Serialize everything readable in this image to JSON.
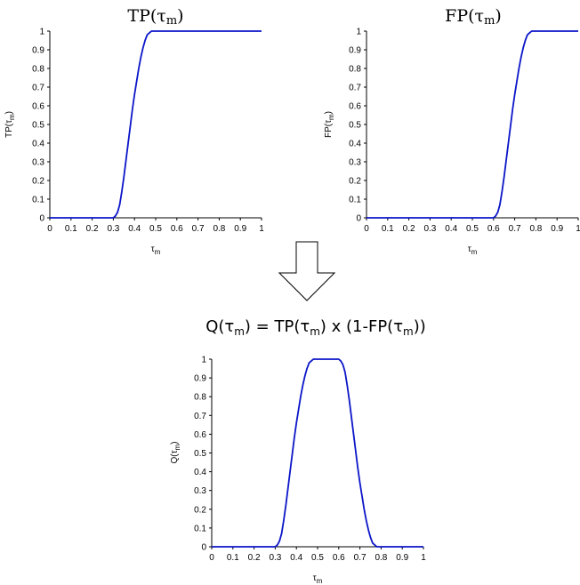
{
  "titles": {
    "tp": {
      "main": "TP(τ",
      "sub": "m",
      "close": ")"
    },
    "fp": {
      "main": "FP(τ",
      "sub": "m",
      "close": ")"
    },
    "formula": {
      "p1": "Q(τ",
      "s1": "m",
      "p2": ") = TP(τ",
      "s2": "m",
      "p3": ") x (1-FP(τ",
      "s3": "m",
      "p4": "))"
    }
  },
  "arrow": {
    "icon": "down-arrow-icon"
  },
  "colors": {
    "series": "#0b16c8",
    "axis": "#000000"
  },
  "chart_data": [
    {
      "id": "tp",
      "type": "line",
      "ylabel": {
        "main": "TP(τ",
        "sub": "m",
        "close": ")"
      },
      "xlabel": {
        "main": "τ",
        "sub": "m"
      },
      "xlim": [
        0,
        1
      ],
      "ylim": [
        0,
        1
      ],
      "x_ticks": [
        "0",
        "0.1",
        "0.2",
        "0.3",
        "0.4",
        "0.5",
        "0.6",
        "0.7",
        "0.8",
        "0.9",
        "1"
      ],
      "y_ticks": [
        "0",
        "0.1",
        "0.2",
        "0.3",
        "0.4",
        "0.5",
        "0.6",
        "0.7",
        "0.8",
        "0.9",
        "1"
      ],
      "grid": false,
      "series": [
        {
          "x": [
            0,
            0.3,
            0.31,
            0.32,
            0.33,
            0.34,
            0.35,
            0.36,
            0.37,
            0.38,
            0.39,
            0.4,
            0.41,
            0.42,
            0.43,
            0.44,
            0.45,
            0.46,
            0.47,
            0.48,
            0.49,
            0.5,
            1
          ],
          "y": [
            0,
            0,
            0.01,
            0.03,
            0.07,
            0.14,
            0.22,
            0.31,
            0.4,
            0.49,
            0.58,
            0.66,
            0.73,
            0.8,
            0.86,
            0.91,
            0.95,
            0.98,
            0.99,
            1,
            1,
            1,
            1
          ]
        }
      ]
    },
    {
      "id": "fp",
      "type": "line",
      "ylabel": {
        "main": "FP(τ",
        "sub": "m",
        "close": ")"
      },
      "xlabel": {
        "main": "τ",
        "sub": "m"
      },
      "xlim": [
        0,
        1
      ],
      "ylim": [
        0,
        1
      ],
      "x_ticks": [
        "0",
        "0.1",
        "0.2",
        "0.3",
        "0.4",
        "0.5",
        "0.6",
        "0.7",
        "0.8",
        "0.9",
        "1"
      ],
      "y_ticks": [
        "0",
        "0.1",
        "0.2",
        "0.3",
        "0.4",
        "0.5",
        "0.6",
        "0.7",
        "0.8",
        "0.9",
        "1"
      ],
      "grid": false,
      "series": [
        {
          "x": [
            0,
            0.6,
            0.61,
            0.62,
            0.63,
            0.64,
            0.65,
            0.66,
            0.67,
            0.68,
            0.69,
            0.7,
            0.71,
            0.72,
            0.73,
            0.74,
            0.75,
            0.76,
            0.77,
            0.78,
            0.79,
            0.8,
            1
          ],
          "y": [
            0,
            0,
            0.01,
            0.03,
            0.07,
            0.14,
            0.22,
            0.31,
            0.4,
            0.49,
            0.58,
            0.66,
            0.73,
            0.8,
            0.86,
            0.91,
            0.95,
            0.98,
            0.99,
            1,
            1,
            1,
            1
          ]
        }
      ]
    },
    {
      "id": "q",
      "type": "line",
      "ylabel": {
        "main": "Q(τ",
        "sub": "m",
        "close": ")"
      },
      "xlabel": {
        "main": "τ",
        "sub": "m"
      },
      "xlim": [
        0,
        1
      ],
      "ylim": [
        0,
        1
      ],
      "x_ticks": [
        "0",
        "0.1",
        "0.2",
        "0.3",
        "0.4",
        "0.5",
        "0.6",
        "0.7",
        "0.8",
        "0.9",
        "1"
      ],
      "y_ticks": [
        "0",
        "0.1",
        "0.2",
        "0.3",
        "0.4",
        "0.5",
        "0.6",
        "0.7",
        "0.8",
        "0.9",
        "1"
      ],
      "grid": false,
      "series": [
        {
          "x": [
            0,
            0.3,
            0.31,
            0.32,
            0.33,
            0.34,
            0.35,
            0.36,
            0.37,
            0.38,
            0.39,
            0.4,
            0.41,
            0.42,
            0.43,
            0.44,
            0.45,
            0.46,
            0.47,
            0.48,
            0.49,
            0.5,
            0.6,
            0.61,
            0.62,
            0.63,
            0.64,
            0.65,
            0.66,
            0.67,
            0.68,
            0.69,
            0.7,
            0.71,
            0.72,
            0.73,
            0.74,
            0.75,
            0.76,
            0.77,
            0.78,
            0.79,
            0.8,
            1
          ],
          "y": [
            0,
            0,
            0.01,
            0.03,
            0.07,
            0.14,
            0.22,
            0.31,
            0.4,
            0.49,
            0.58,
            0.66,
            0.73,
            0.8,
            0.86,
            0.91,
            0.95,
            0.98,
            0.99,
            1,
            1,
            1,
            1,
            0.99,
            0.97,
            0.93,
            0.86,
            0.78,
            0.69,
            0.6,
            0.51,
            0.42,
            0.34,
            0.27,
            0.2,
            0.14,
            0.09,
            0.05,
            0.02,
            0.01,
            0,
            0,
            0,
            0
          ]
        }
      ]
    }
  ]
}
